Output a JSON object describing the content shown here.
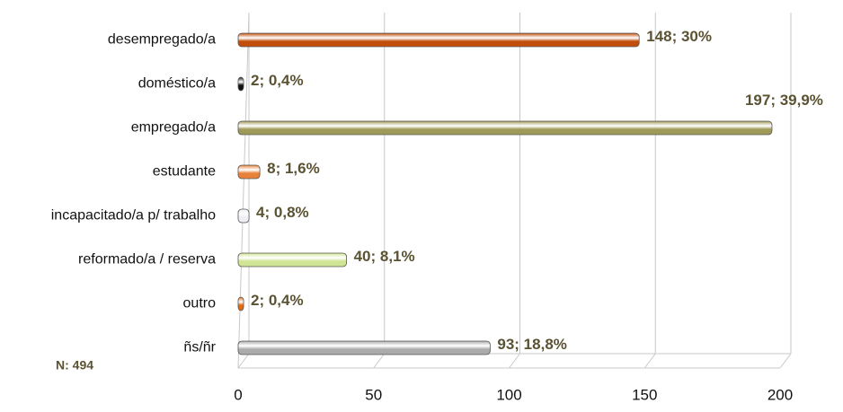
{
  "chart_data": {
    "type": "bar",
    "orientation": "horizontal",
    "categories": [
      "desempregado/a",
      "doméstico/a",
      "empregado/a",
      "estudante",
      "incapacitado/a p/ trabalho",
      "reformado/a / reserva",
      "outro",
      "ñs/ñr"
    ],
    "values": [
      148,
      2,
      197,
      8,
      4,
      40,
      2,
      93
    ],
    "value_labels": [
      "148; 30%",
      "2; 0,4%",
      "197; 39,9%",
      "8; 1,6%",
      "4; 0,8%",
      "40; 8,1%",
      "2; 0,4%",
      "93; 18,8%"
    ],
    "colors": [
      "#c24e0c",
      "#111111",
      "#a09a58",
      "#e8823a",
      "#eeeef4",
      "#cfe594",
      "#e26a14",
      "#ababab"
    ],
    "xlim": [
      0,
      200
    ],
    "xticks": [
      0,
      50,
      100,
      150,
      200
    ],
    "grid": true,
    "annotation": "N: 494"
  }
}
